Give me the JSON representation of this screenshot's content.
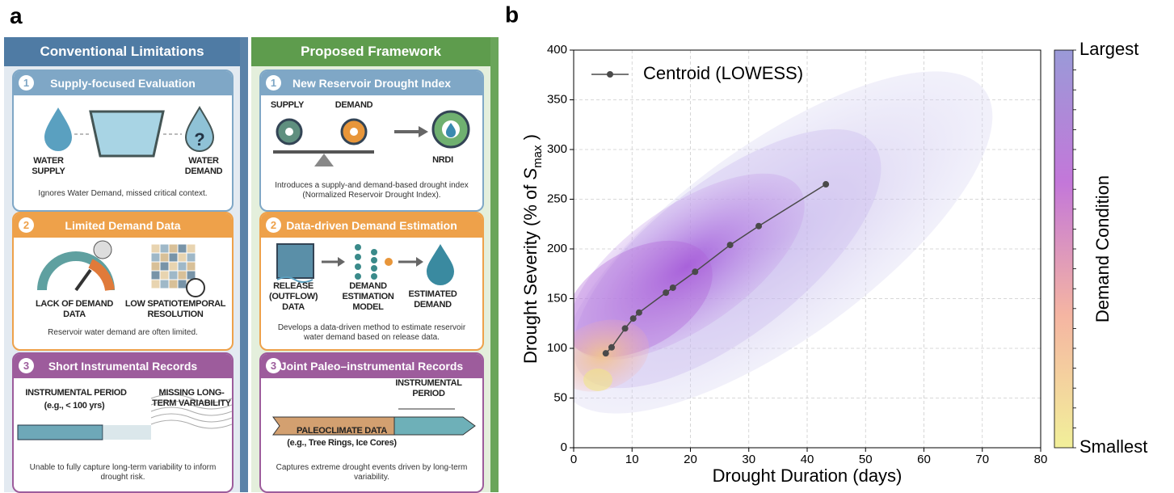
{
  "panel_a": {
    "label": "a",
    "columns": [
      {
        "title": "Conventional Limitations",
        "cards": [
          {
            "number": 1,
            "title": "Supply-focused Evaluation",
            "labels": [
              "WATER SUPPLY",
              "WATER DEMAND"
            ],
            "caption": "Ignores Water Demand, missed critical context."
          },
          {
            "number": 2,
            "title": "Limited Demand Data",
            "labels": [
              "LACK OF DEMAND DATA",
              "LOW SPATIOTEMPORAL RESOLUTION"
            ],
            "caption": "Reservoir water demand are often limited."
          },
          {
            "number": 3,
            "title": "Short Instrumental Records",
            "labels": [
              "INSTRUMENTAL PERIOD",
              "(e.g., < 100 yrs)",
              "MISSING LONG-TERM VARIABILITY"
            ],
            "caption": "Unable to fully capture long-term variability to inform drought risk."
          }
        ]
      },
      {
        "title": "Proposed Framework",
        "cards": [
          {
            "number": 1,
            "title": "New Reservoir Drought Index",
            "labels": [
              "SUPPLY",
              "DEMAND",
              "NRDI"
            ],
            "caption": "Introduces a supply-and demand-based drought index (Normalized Reservoir Drought Index)."
          },
          {
            "number": 2,
            "title": "Data-driven Demand Estimation",
            "labels": [
              "RELEASE (OUTFLOW) DATA",
              "DEMAND ESTIMATION MODEL",
              "ESTIMATED DEMAND"
            ],
            "caption": "Develops a data-driven method to estimate reservoir water demand based on release data."
          },
          {
            "number": 3,
            "title": "Joint Paleo–instrumental Records",
            "labels": [
              "INSTRUMENTAL PERIOD",
              "PALEOCLIMATE DATA",
              "(e.g., Tree Rings, Ice Cores)"
            ],
            "caption": "Captures extreme drought events driven by long-term variability."
          }
        ]
      }
    ]
  },
  "chart_data": {
    "type": "line",
    "panel_label": "b",
    "xlabel": "Drought Duration (days)",
    "ylabel": {
      "text": "Drought Severity (% of ",
      "symbol": "S",
      "subscript": "max",
      "close": " )"
    },
    "xlim": [
      0,
      80
    ],
    "xticks": [
      0,
      10,
      20,
      30,
      40,
      50,
      60,
      70,
      80
    ],
    "ylim": [
      0,
      400
    ],
    "yticks": [
      0,
      50,
      100,
      150,
      200,
      250,
      300,
      350,
      400
    ],
    "grid": true,
    "legend": "upper left",
    "series": [
      {
        "name": "Centroid (LOWESS)",
        "color": "#4a4a4a",
        "x": [
          5.5,
          6.5,
          8.8,
          10.2,
          11.2,
          15.8,
          17,
          20.8,
          26.8,
          31.7,
          43.2
        ],
        "values": [
          95,
          101,
          120,
          130,
          136,
          156,
          161,
          177,
          204,
          223,
          265
        ]
      }
    ],
    "colorbar": {
      "label": "Demand Condition",
      "tick_labels": [
        "Smallest",
        "Largest"
      ],
      "colors": [
        "#f2f09a",
        "#f5b5a2",
        "#c377d9",
        "#9a9ad8"
      ]
    }
  }
}
